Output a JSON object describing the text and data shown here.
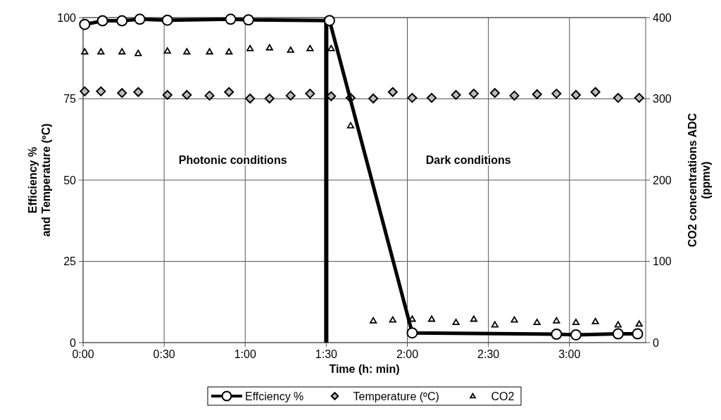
{
  "chart_data": {
    "type": "line",
    "xlabel": "Time (h: min)",
    "ylabel": "Efficiency %\nand Temperature (ºC)",
    "y2label": "CO2  concentrations ADC\n(ppmv)",
    "xlim": [
      0,
      3.47
    ],
    "xticks": [
      {
        "value": 0,
        "label": "0:00"
      },
      {
        "value": 0.5,
        "label": "0:30"
      },
      {
        "value": 1,
        "label": "1:00"
      },
      {
        "value": 1.5,
        "label": "1:30"
      },
      {
        "value": 2,
        "label": "2:00"
      },
      {
        "value": 2.5,
        "label": "2:30"
      },
      {
        "value": 3,
        "label": "3:00"
      }
    ],
    "ylim": [
      0,
      100
    ],
    "yticks": [
      0,
      25,
      50,
      75,
      100
    ],
    "y2lim": [
      0,
      400
    ],
    "y2ticks": [
      0,
      100,
      200,
      300,
      400
    ],
    "grid": true,
    "legend": "bottom",
    "series": [
      {
        "name": "Effciency %",
        "type": "line",
        "color": "#000000",
        "marker": "circle",
        "line_style": "solid",
        "x": [
          0.01,
          0.12,
          0.24,
          0.35,
          0.52,
          0.91,
          1.02,
          1.52,
          2.03,
          2.92,
          3.04,
          3.3,
          3.42
        ],
        "values": [
          97.9,
          99,
          99,
          99.5,
          99.2,
          99.5,
          99.3,
          99.1,
          3,
          2.6,
          2.4,
          2.7,
          2.7
        ]
      },
      {
        "name": "Temperature (ºC)",
        "type": "scatter",
        "color": "#bbbbbb",
        "marker": "diamond",
        "x": [
          0.01,
          0.11,
          0.24,
          0.34,
          0.52,
          0.64,
          0.78,
          0.9,
          1.03,
          1.15,
          1.28,
          1.4,
          1.53,
          1.65,
          1.79,
          1.91,
          2.03,
          2.15,
          2.3,
          2.41,
          2.54,
          2.66,
          2.8,
          2.92,
          3.04,
          3.16,
          3.3,
          3.43
        ],
        "values": [
          77.3,
          77.3,
          76.8,
          77.1,
          76.2,
          76.2,
          76,
          77.1,
          75.1,
          75.1,
          76,
          76.6,
          75.8,
          75.3,
          75.1,
          77.1,
          75.3,
          75.3,
          76.2,
          76.6,
          76.8,
          76,
          76.4,
          76.6,
          76.2,
          77.1,
          75.3,
          75.3
        ]
      },
      {
        "name": "CO2",
        "type": "scatter",
        "axis": "y2",
        "color": "#ffffff",
        "marker": "triangle",
        "x": [
          0.01,
          0.11,
          0.24,
          0.34,
          0.52,
          0.64,
          0.78,
          0.9,
          1.03,
          1.15,
          1.28,
          1.4,
          1.53,
          1.65,
          1.79,
          1.91,
          2.03,
          2.15,
          2.3,
          2.41,
          2.54,
          2.66,
          2.8,
          2.92,
          3.04,
          3.16,
          3.3,
          3.43
        ],
        "values": [
          358,
          358,
          358,
          356,
          359,
          358,
          358,
          358,
          362,
          363,
          360,
          362,
          362,
          267,
          27,
          28,
          29,
          29,
          25,
          29,
          22,
          28,
          25,
          27,
          25,
          26,
          22,
          23
        ]
      }
    ],
    "ref_lines": [
      {
        "axis": "x",
        "value": 1.5,
        "color": "#000000"
      }
    ],
    "annotations": [
      "Photonic conditions",
      "Dark conditions"
    ]
  }
}
